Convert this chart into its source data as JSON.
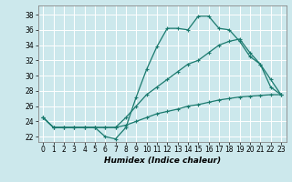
{
  "xlabel": "Humidex (Indice chaleur)",
  "background_color": "#cce8ec",
  "grid_color": "#ffffff",
  "line_color": "#1a7a6e",
  "xlim": [
    -0.5,
    23.5
  ],
  "ylim": [
    21.3,
    39.2
  ],
  "xticks": [
    0,
    1,
    2,
    3,
    4,
    5,
    6,
    7,
    8,
    9,
    10,
    11,
    12,
    13,
    14,
    15,
    16,
    17,
    18,
    19,
    20,
    21,
    22,
    23
  ],
  "yticks": [
    22,
    24,
    26,
    28,
    30,
    32,
    34,
    36,
    38
  ],
  "curve1_x": [
    0,
    1,
    2,
    3,
    4,
    5,
    6,
    7,
    8,
    9,
    10,
    11,
    12,
    13,
    14,
    15,
    16,
    17,
    18,
    19,
    20,
    21,
    22,
    23
  ],
  "curve1_y": [
    24.5,
    23.2,
    23.2,
    23.2,
    23.2,
    23.2,
    22.0,
    21.7,
    23.2,
    27.2,
    30.8,
    33.8,
    36.2,
    36.2,
    36.0,
    37.8,
    37.8,
    36.2,
    36.0,
    34.5,
    32.5,
    31.5,
    29.5,
    27.5
  ],
  "curve2_x": [
    0,
    1,
    2,
    3,
    4,
    5,
    6,
    7,
    8,
    9,
    10,
    11,
    12,
    13,
    14,
    15,
    16,
    17,
    18,
    19,
    20,
    21,
    22,
    23
  ],
  "curve2_y": [
    24.5,
    23.2,
    23.2,
    23.2,
    23.2,
    23.2,
    23.2,
    23.2,
    24.5,
    26.0,
    27.5,
    28.5,
    29.5,
    30.5,
    31.5,
    32.0,
    33.0,
    34.0,
    34.5,
    34.8,
    33.0,
    31.5,
    28.5,
    27.5
  ],
  "curve3_x": [
    0,
    1,
    2,
    3,
    4,
    5,
    6,
    7,
    8,
    9,
    10,
    11,
    12,
    13,
    14,
    15,
    16,
    17,
    18,
    19,
    20,
    21,
    22,
    23
  ],
  "curve3_y": [
    24.5,
    23.2,
    23.2,
    23.2,
    23.2,
    23.2,
    23.2,
    23.2,
    23.5,
    24.0,
    24.5,
    25.0,
    25.3,
    25.6,
    26.0,
    26.2,
    26.5,
    26.8,
    27.0,
    27.2,
    27.3,
    27.4,
    27.5,
    27.5
  ],
  "tick_fontsize": 5.5,
  "xlabel_fontsize": 6.5
}
